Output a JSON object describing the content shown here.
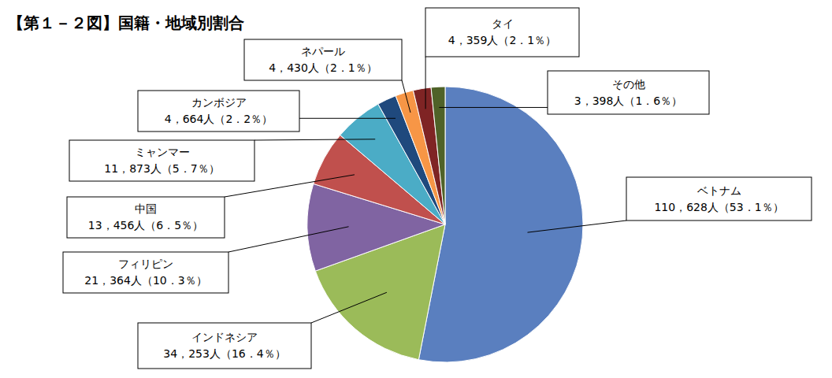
{
  "chart_data": {
    "type": "pie",
    "title": "【第１－２図】国籍・地域別割合",
    "categories": [
      "ベトナム",
      "インドネシア",
      "フィリピン",
      "中国",
      "ミャンマー",
      "カンボジア",
      "ネパール",
      "タイ",
      "その他"
    ],
    "values": [
      110628,
      34253,
      21364,
      13456,
      11873,
      4664,
      4430,
      4359,
      3398
    ],
    "value_labels": [
      "110，628人（53．1％）",
      "34，253人（16．4％）",
      "21，364人（10．3％）",
      "13，456人（6．5％）",
      "11，873人（5．7％）",
      "4，664人（2．2％）",
      "4，430人（2．1％）",
      "4，359人（2．1％）",
      "3，398人（1．6％）"
    ],
    "colors": [
      "#5a7fbf",
      "#9bbb59",
      "#8064a2",
      "#c0504d",
      "#4bacc6",
      "#1f497d",
      "#f79646",
      "#7f2424",
      "#4f6228"
    ],
    "data_labels": true
  }
}
